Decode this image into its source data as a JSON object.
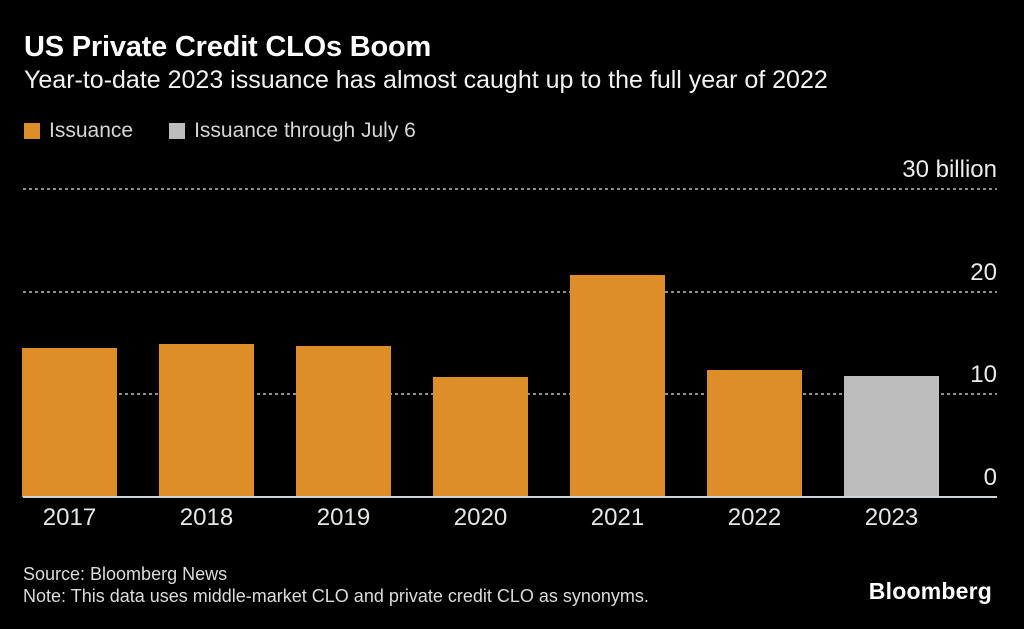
{
  "header": {
    "title": "US Private Credit CLOs Boom",
    "subtitle": "Year-to-date 2023 issuance has almost caught up to the full year of 2022"
  },
  "legend": {
    "items": [
      {
        "label": "Issuance",
        "color": "#DD8E29"
      },
      {
        "label": "Issuance through July 6",
        "color": "#BDBDBD"
      }
    ]
  },
  "chart_data": {
    "type": "bar",
    "title": "US Private Credit CLOs Boom",
    "subtitle": "Year-to-date 2023 issuance has almost caught up to the full year of 2022",
    "unit": "billion USD",
    "categories": [
      "2017",
      "2018",
      "2019",
      "2020",
      "2021",
      "2022",
      "2023"
    ],
    "series": [
      {
        "name": "Issuance",
        "color": "#DD8E29",
        "values": [
          14.5,
          14.9,
          14.7,
          11.7,
          21.6,
          12.4,
          null
        ]
      },
      {
        "name": "Issuance through July 6",
        "color": "#BDBDBD",
        "values": [
          null,
          null,
          null,
          null,
          null,
          null,
          11.8
        ]
      }
    ],
    "ylim": [
      0,
      30
    ],
    "yticks": [
      {
        "value": 30,
        "label": "30 billion"
      },
      {
        "value": 20,
        "label": "20"
      },
      {
        "value": 10,
        "label": "10"
      },
      {
        "value": 0,
        "label": "0"
      }
    ],
    "grid": "horizontal-dotted",
    "legend_position": "top-left",
    "colors": {
      "background": "#000000",
      "grid": "#8f8f8f",
      "axis_line": "#cfd4d8",
      "text": "#ebebeb"
    }
  },
  "footer": {
    "source": "Source: Bloomberg News",
    "note": "Note: This data uses middle-market CLO and private credit CLO as synonyms.",
    "brand": "Bloomberg"
  }
}
